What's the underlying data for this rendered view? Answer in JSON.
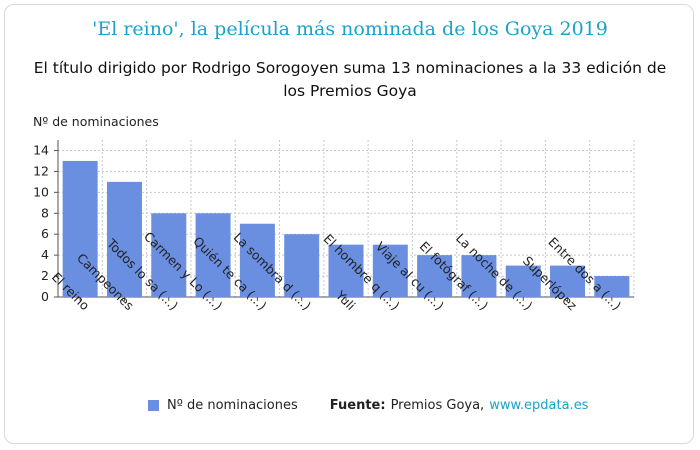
{
  "header": {
    "title": "'El reino', la película más nominada de los Goya 2019",
    "subtitle": "El título dirigido por Rodrigo Sorogoyen suma 13 nominaciones a la 33 edición de los Premios Goya"
  },
  "chart_data": {
    "type": "bar",
    "title": "'El reino', la película más nominada de los Goya 2019",
    "subtitle": "El título dirigido por Rodrigo Sorogoyen suma 13 nominaciones a la 33 edición de los Premios Goya",
    "ylabel": "Nº de nominaciones",
    "xlabel": "",
    "ylim": [
      0,
      15
    ],
    "yticks": [
      0,
      2,
      4,
      6,
      8,
      10,
      12,
      14
    ],
    "grid": true,
    "legend_position": "bottom",
    "categories": [
      "El reino",
      "Campeones",
      "Todos lo sa (...)",
      "Carmen y Lo (...)",
      "Quién te ca (...)",
      "La sombra d (...)",
      "Yuli",
      "El hombre q (...)",
      "Viaje al cu (...)",
      "El fotógraf (...)",
      "La noche de (...)",
      "Superlópez",
      "Entre dos a (...)"
    ],
    "series": [
      {
        "name": "Nº de nominaciones",
        "values": [
          13,
          11,
          8,
          8,
          7,
          6,
          5,
          5,
          4,
          4,
          3,
          3,
          2
        ]
      }
    ],
    "bar_color": "#6a8ee0"
  },
  "footer": {
    "legend_label": "Nº de nominaciones",
    "source_label": "Fuente:",
    "source_name": "Premios Goya,",
    "source_link": "www.epdata.es"
  }
}
